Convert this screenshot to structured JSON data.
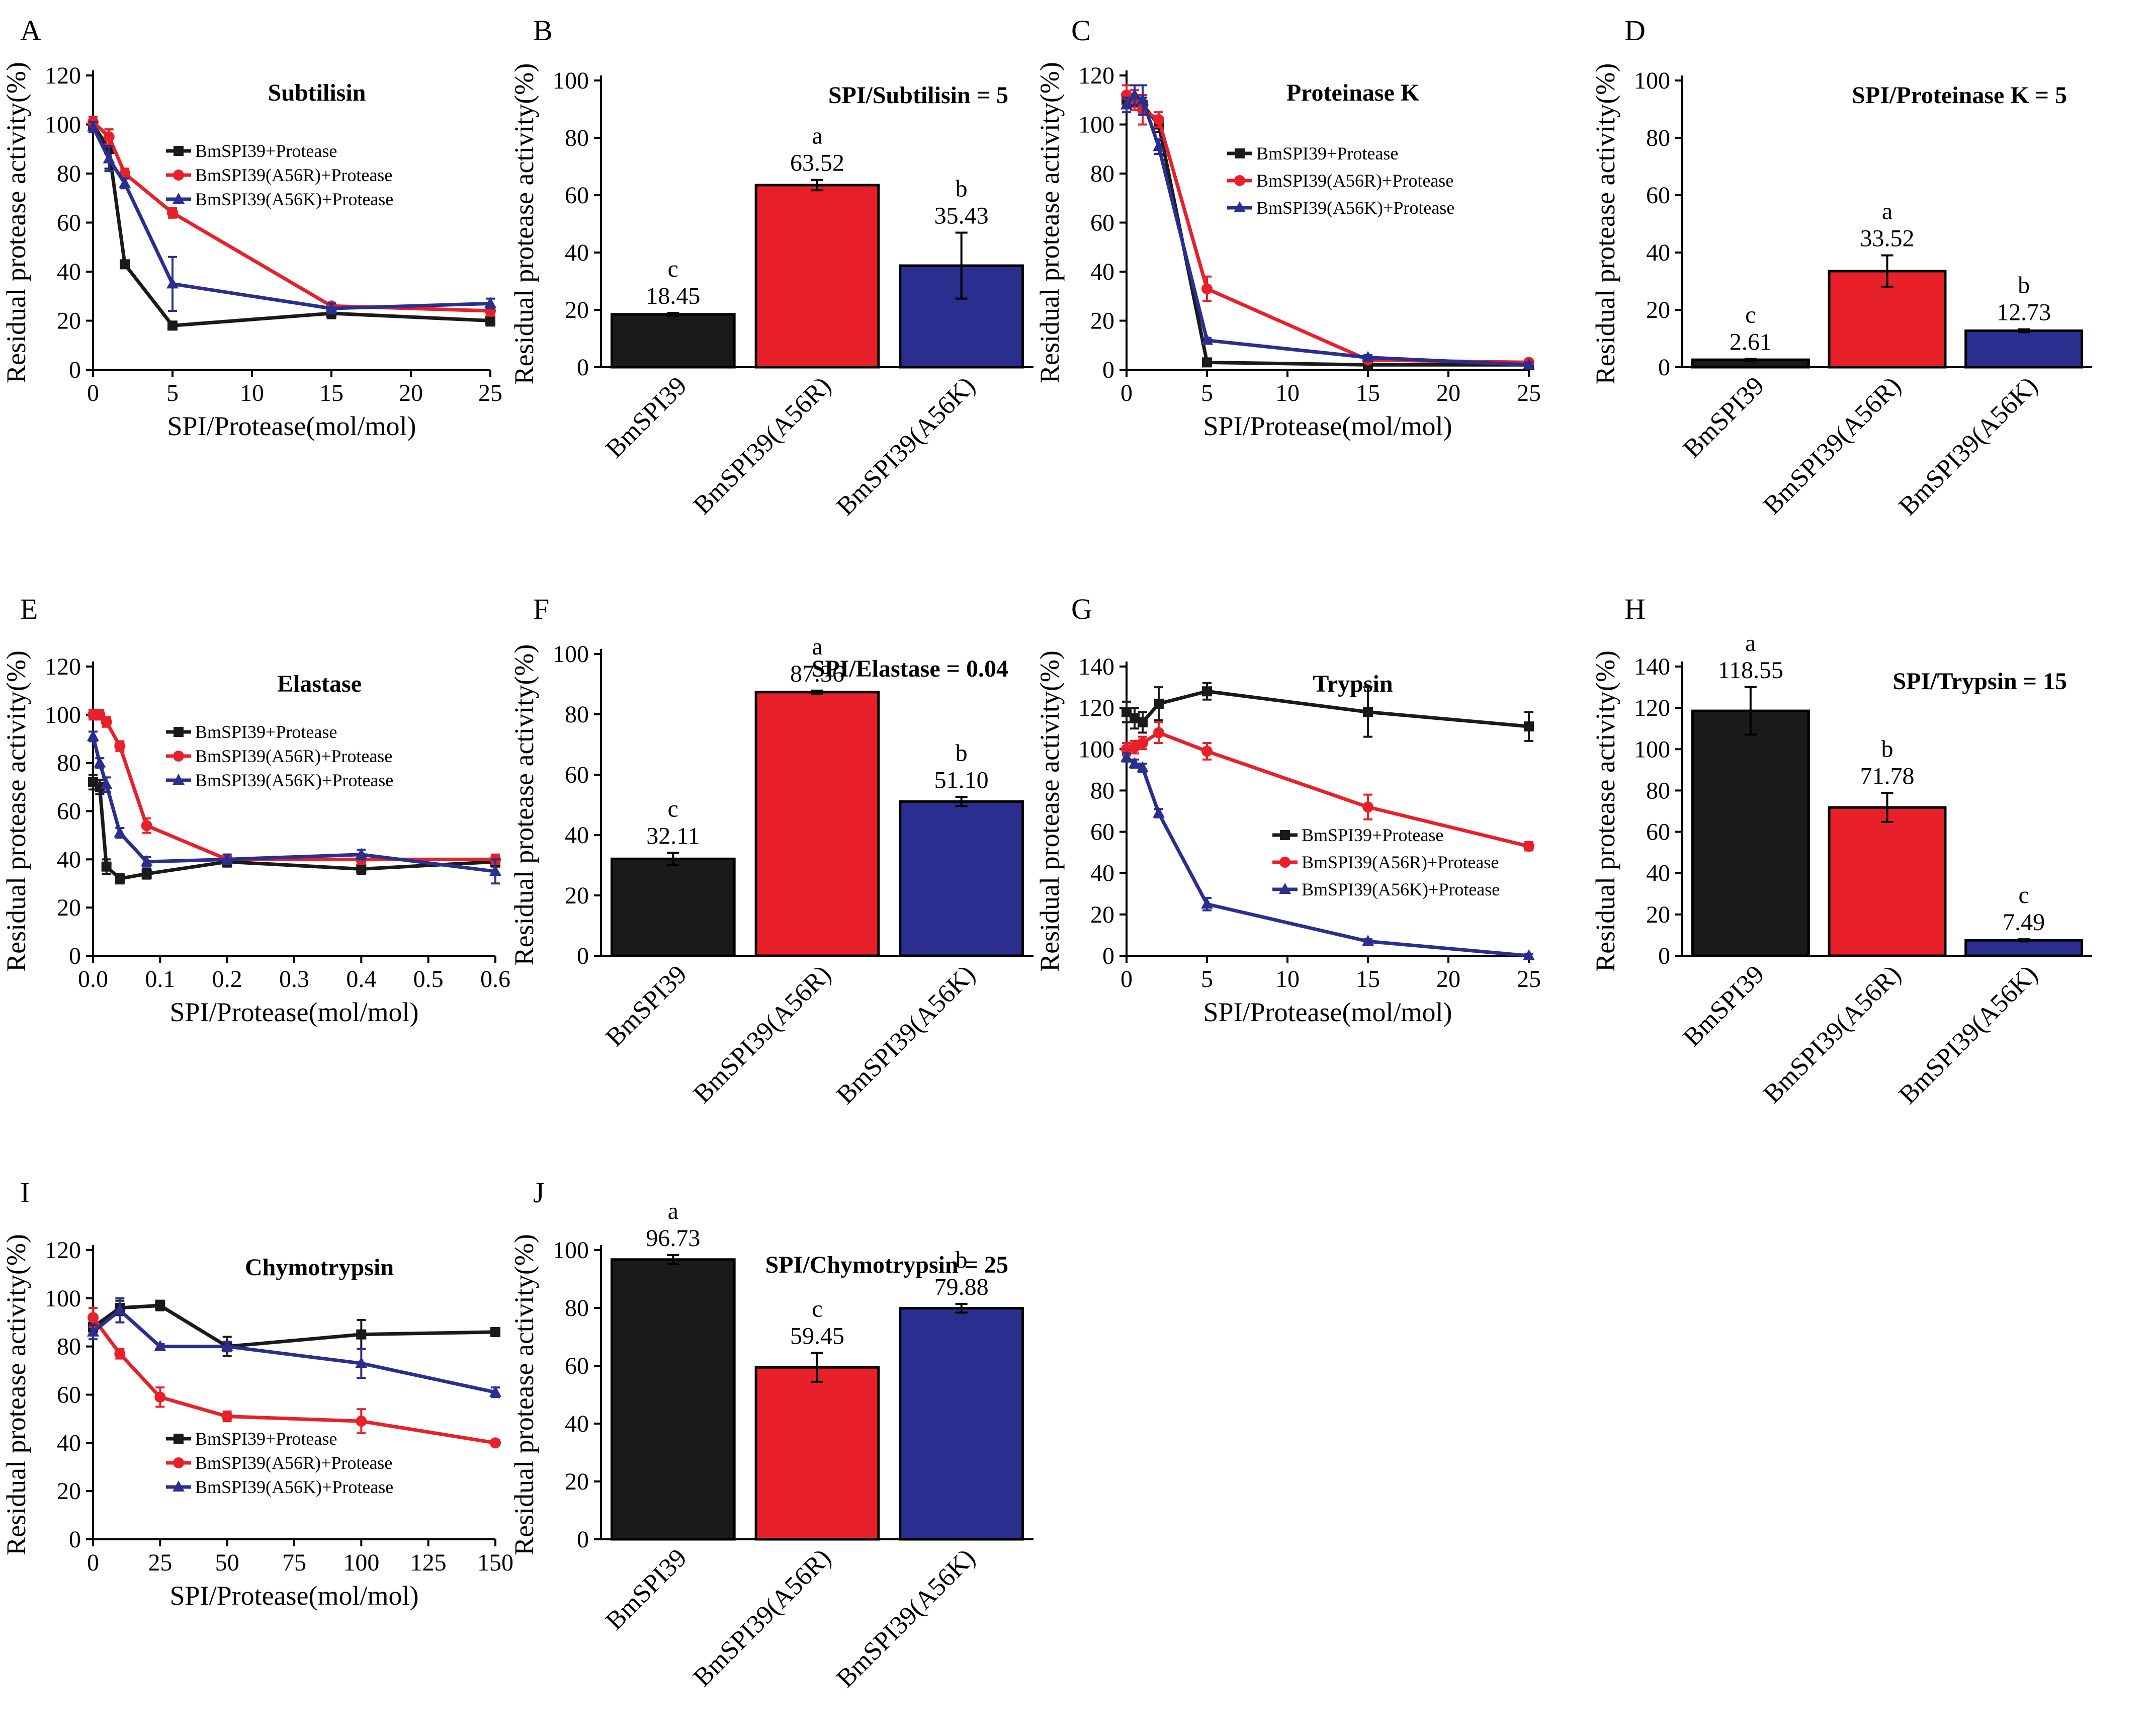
{
  "colors": {
    "BmSPI39": "#1a1a1a",
    "A56R": "#e8202a",
    "A56K": "#2a2f8f"
  },
  "chart_data": [
    {
      "panel": "A",
      "type": "line",
      "title": "Subtilisin",
      "xlabel": "SPI/Protease(mol/mol)",
      "ylabel": "Residual protease activity(%)",
      "xlim": [
        0,
        25
      ],
      "ylim": [
        0,
        120
      ],
      "xticks": [
        0,
        5,
        10,
        15,
        20,
        25
      ],
      "yticks": [
        0,
        20,
        40,
        60,
        80,
        100,
        120
      ],
      "series": [
        {
          "name": "BmSPI39+Protease",
          "color_key": "BmSPI39",
          "marker": "square",
          "x": [
            0,
            1,
            2,
            5,
            15,
            25
          ],
          "y": [
            100,
            90,
            43,
            18,
            23,
            20
          ],
          "err": [
            2,
            8,
            1,
            1,
            2,
            2
          ]
        },
        {
          "name": "BmSPI39(A56R)+Protease",
          "color_key": "A56R",
          "marker": "circle",
          "x": [
            0,
            1,
            2,
            5,
            15,
            25
          ],
          "y": [
            101,
            95,
            80,
            64,
            26,
            24
          ],
          "err": [
            2,
            3,
            2,
            2,
            1,
            2
          ]
        },
        {
          "name": "BmSPI39(A56K)+Protease",
          "color_key": "A56K",
          "marker": "triangle",
          "x": [
            0,
            1,
            2,
            5,
            15,
            25
          ],
          "y": [
            99,
            86,
            76,
            35,
            25,
            27
          ],
          "err": [
            2,
            5,
            2,
            11,
            2,
            2
          ]
        }
      ]
    },
    {
      "panel": "B",
      "type": "bar",
      "title": "SPI/Subtilisin = 5",
      "ylabel": "Residual protease activity(%)",
      "ylim": [
        0,
        100
      ],
      "yticks": [
        0,
        20,
        40,
        60,
        80,
        100
      ],
      "categories": [
        "BmSPI39",
        "BmSPI39(A56R)",
        "BmSPI39(A56K)"
      ],
      "color_keys": [
        "BmSPI39",
        "A56R",
        "A56K"
      ],
      "values": [
        18.45,
        63.52,
        35.43
      ],
      "value_labels": [
        "18.45",
        "63.52",
        "35.43"
      ],
      "err": [
        0.5,
        1.8,
        11.5
      ],
      "sig": [
        "c",
        "a",
        "b"
      ]
    },
    {
      "panel": "C",
      "type": "line",
      "title": "Proteinase K",
      "xlabel": "SPI/Protease(mol/mol)",
      "ylabel": "Residual protease activity(%)",
      "xlim": [
        0,
        25
      ],
      "ylim": [
        0,
        120
      ],
      "xticks": [
        0,
        5,
        10,
        15,
        20,
        25
      ],
      "yticks": [
        0,
        20,
        40,
        60,
        80,
        100,
        120
      ],
      "series": [
        {
          "name": "BmSPI39+Protease",
          "color_key": "BmSPI39",
          "marker": "square",
          "x": [
            0,
            0.5,
            1,
            2,
            5,
            15,
            25
          ],
          "y": [
            110,
            109,
            108,
            100,
            3,
            2,
            2
          ],
          "err": [
            3,
            3,
            3,
            3,
            1,
            1,
            1
          ]
        },
        {
          "name": "BmSPI39(A56R)+Protease",
          "color_key": "A56R",
          "marker": "circle",
          "x": [
            0,
            0.5,
            1,
            2,
            5,
            15,
            25
          ],
          "y": [
            112,
            110,
            106,
            102,
            33,
            4,
            3
          ],
          "err": [
            4,
            4,
            6,
            3,
            5,
            1,
            1
          ]
        },
        {
          "name": "BmSPI39(A56K)+Protease",
          "color_key": "A56K",
          "marker": "triangle",
          "x": [
            0,
            0.5,
            1,
            2,
            5,
            15,
            25
          ],
          "y": [
            108,
            112,
            110,
            91,
            12,
            5,
            2
          ],
          "err": [
            3,
            4,
            6,
            3,
            1,
            1,
            1
          ]
        }
      ]
    },
    {
      "panel": "D",
      "type": "bar",
      "title": "SPI/Proteinase K = 5",
      "ylabel": "Residual protease activity(%)",
      "ylim": [
        0,
        100
      ],
      "yticks": [
        0,
        20,
        40,
        60,
        80,
        100
      ],
      "categories": [
        "BmSPI39",
        "BmSPI39(A56R)",
        "BmSPI39(A56K)"
      ],
      "color_keys": [
        "BmSPI39",
        "A56R",
        "A56K"
      ],
      "values": [
        2.61,
        33.52,
        12.73
      ],
      "value_labels": [
        "2.61",
        "33.52",
        "12.73"
      ],
      "err": [
        0.3,
        5.5,
        0.5
      ],
      "sig": [
        "c",
        "a",
        "b"
      ]
    },
    {
      "panel": "E",
      "type": "line",
      "title": "Elastase",
      "xlabel": "SPI/Protease(mol/mol)",
      "ylabel": "Residual protease activity(%)",
      "xlim": [
        0,
        0.6
      ],
      "ylim": [
        0,
        120
      ],
      "xticks": [
        0.0,
        0.1,
        0.2,
        0.3,
        0.4,
        0.5,
        0.6
      ],
      "xtick_labels": [
        "0.0",
        "0.1",
        "0.2",
        "0.3",
        "0.4",
        "0.5",
        "0.6"
      ],
      "yticks": [
        0,
        20,
        40,
        60,
        80,
        100,
        120
      ],
      "series": [
        {
          "name": "BmSPI39+Protease",
          "color_key": "BmSPI39",
          "marker": "square",
          "x": [
            0,
            0.01,
            0.02,
            0.04,
            0.08,
            0.2,
            0.4,
            0.6
          ],
          "y": [
            72,
            70,
            37,
            32,
            34,
            39,
            36,
            39
          ],
          "err": [
            3,
            3,
            3,
            2,
            2,
            2,
            2,
            2
          ]
        },
        {
          "name": "BmSPI39(A56R)+Protease",
          "color_key": "A56R",
          "marker": "circle",
          "x": [
            0,
            0.01,
            0.02,
            0.04,
            0.08,
            0.2,
            0.4,
            0.6
          ],
          "y": [
            100,
            100,
            97,
            87,
            54,
            40,
            40,
            40
          ],
          "err": [
            2,
            2,
            2,
            2,
            3,
            2,
            2,
            2
          ]
        },
        {
          "name": "BmSPI39(A56K)+Protease",
          "color_key": "A56K",
          "marker": "triangle",
          "x": [
            0,
            0.01,
            0.02,
            0.04,
            0.08,
            0.2,
            0.4,
            0.6
          ],
          "y": [
            91,
            80,
            71,
            51,
            39,
            40,
            42,
            35
          ],
          "err": [
            2,
            2,
            3,
            2,
            2,
            2,
            2,
            5
          ]
        }
      ]
    },
    {
      "panel": "F",
      "type": "bar",
      "title": "SPI/Elastase = 0.04",
      "ylabel": "Residual protease activity(%)",
      "ylim": [
        0,
        100
      ],
      "yticks": [
        0,
        20,
        40,
        60,
        80,
        100
      ],
      "categories": [
        "BmSPI39",
        "BmSPI39(A56R)",
        "BmSPI39(A56K)"
      ],
      "color_keys": [
        "BmSPI39",
        "A56R",
        "A56K"
      ],
      "values": [
        32.11,
        87.36,
        51.1
      ],
      "value_labels": [
        "32.11",
        "87.36",
        "51.10"
      ],
      "err": [
        2.0,
        0.5,
        1.5
      ],
      "sig": [
        "c",
        "a",
        "b"
      ]
    },
    {
      "panel": "G",
      "type": "line",
      "title": "Trypsin",
      "xlabel": "SPI/Protease(mol/mol)",
      "ylabel": "Residual protease activity(%)",
      "xlim": [
        0,
        25
      ],
      "ylim": [
        0,
        140
      ],
      "xticks": [
        0,
        5,
        10,
        15,
        20,
        25
      ],
      "yticks": [
        0,
        20,
        40,
        60,
        80,
        100,
        120,
        140
      ],
      "series": [
        {
          "name": "BmSPI39+Protease",
          "color_key": "BmSPI39",
          "marker": "square",
          "x": [
            0,
            0.5,
            1,
            2,
            5,
            15,
            25
          ],
          "y": [
            118,
            115,
            113,
            122,
            128,
            118,
            111
          ],
          "err": [
            5,
            5,
            5,
            8,
            4,
            12,
            7
          ]
        },
        {
          "name": "BmSPI39(A56R)+Protease",
          "color_key": "A56R",
          "marker": "circle",
          "x": [
            0,
            0.5,
            1,
            2,
            5,
            15,
            25
          ],
          "y": [
            100,
            101,
            103,
            108,
            99,
            72,
            53
          ],
          "err": [
            3,
            3,
            3,
            5,
            4,
            6,
            2
          ]
        },
        {
          "name": "BmSPI39(A56K)+Protease",
          "color_key": "A56K",
          "marker": "triangle",
          "x": [
            0,
            0.5,
            1,
            2,
            5,
            15,
            25
          ],
          "y": [
            96,
            93,
            91,
            69,
            25,
            7,
            0
          ],
          "err": [
            2,
            2,
            2,
            2,
            3,
            1,
            1
          ]
        }
      ]
    },
    {
      "panel": "H",
      "type": "bar",
      "title": "SPI/Trypsin = 15",
      "ylabel": "Residual protease activity(%)",
      "ylim": [
        0,
        140
      ],
      "yticks": [
        0,
        20,
        40,
        60,
        80,
        100,
        120,
        140
      ],
      "categories": [
        "BmSPI39",
        "BmSPI39(A56R)",
        "BmSPI39(A56K)"
      ],
      "color_keys": [
        "BmSPI39",
        "A56R",
        "A56K"
      ],
      "values": [
        118.55,
        71.78,
        7.49
      ],
      "value_labels": [
        "118.55",
        "71.78",
        "7.49"
      ],
      "err": [
        11.5,
        7.0,
        0.5
      ],
      "sig": [
        "a",
        "b",
        "c"
      ]
    },
    {
      "panel": "I",
      "type": "line",
      "title": "Chymotrypsin",
      "xlabel": "SPI/Protease(mol/mol)",
      "ylabel": "Residual protease activity(%)",
      "xlim": [
        0,
        150
      ],
      "ylim": [
        0,
        120
      ],
      "xticks": [
        0,
        25,
        50,
        75,
        100,
        125,
        150
      ],
      "yticks": [
        0,
        20,
        40,
        60,
        80,
        100,
        120
      ],
      "series": [
        {
          "name": "BmSPI39+Protease",
          "color_key": "BmSPI39",
          "marker": "square",
          "x": [
            0,
            10,
            25,
            50,
            100,
            150
          ],
          "y": [
            88,
            96,
            97,
            80,
            85,
            86
          ],
          "err": [
            2,
            3,
            2,
            4,
            6,
            1
          ]
        },
        {
          "name": "BmSPI39(A56R)+Protease",
          "color_key": "A56R",
          "marker": "circle",
          "x": [
            0,
            10,
            25,
            50,
            100,
            150
          ],
          "y": [
            92,
            77,
            59,
            51,
            49,
            40
          ],
          "err": [
            4,
            2,
            4,
            2,
            5,
            1
          ]
        },
        {
          "name": "BmSPI39(A56K)+Protease",
          "color_key": "A56K",
          "marker": "triangle",
          "x": [
            0,
            10,
            25,
            50,
            100,
            150
          ],
          "y": [
            86,
            95,
            80,
            80,
            73,
            61
          ],
          "err": [
            3,
            5,
            1,
            2,
            6,
            2
          ]
        }
      ]
    },
    {
      "panel": "J",
      "type": "bar",
      "title": "SPI/Chymotrypsin = 25",
      "ylabel": "Residual protease activity(%)",
      "ylim": [
        0,
        100
      ],
      "yticks": [
        0,
        20,
        40,
        60,
        80,
        100
      ],
      "categories": [
        "BmSPI39",
        "BmSPI39(A56R)",
        "BmSPI39(A56K)"
      ],
      "color_keys": [
        "BmSPI39",
        "A56R",
        "A56K"
      ],
      "values": [
        96.73,
        59.45,
        79.88
      ],
      "value_labels": [
        "96.73",
        "59.45",
        "79.88"
      ],
      "err": [
        1.5,
        5.0,
        1.5
      ],
      "sig": [
        "a",
        "c",
        "b"
      ]
    }
  ]
}
